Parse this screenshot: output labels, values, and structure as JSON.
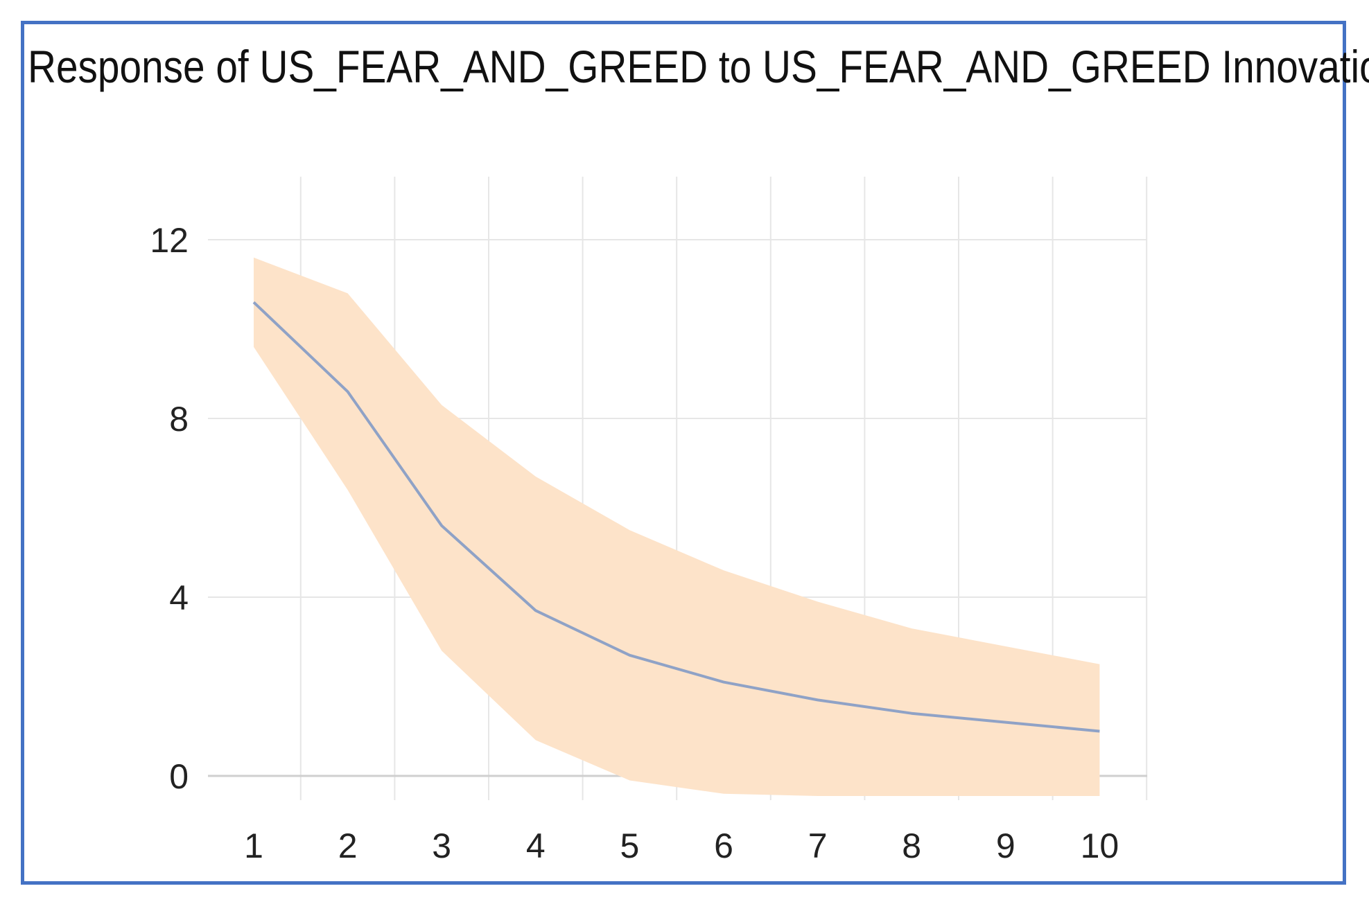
{
  "chart_data": {
    "type": "line",
    "title": "Response of US_FEAR_AND_GREED to US_FEAR_AND_GREED Innovation",
    "xlabel": "",
    "ylabel": "",
    "x": [
      1,
      2,
      3,
      4,
      5,
      6,
      7,
      8,
      9,
      10
    ],
    "x_tick_labels": [
      "1",
      "2",
      "3",
      "4",
      "5",
      "6",
      "7",
      "8",
      "9",
      "10"
    ],
    "y_ticks": [
      0,
      4,
      8,
      12
    ],
    "y_tick_labels": [
      "0",
      "4",
      "8",
      "12"
    ],
    "ylim": [
      -0.6,
      13.5
    ],
    "xlim": [
      0.5,
      10.5
    ],
    "grid": true,
    "series": [
      {
        "values": [
          10.6,
          8.6,
          5.6,
          3.7,
          2.7,
          2.1,
          1.7,
          1.4,
          1.2,
          1.0
        ]
      }
    ],
    "band": {
      "upper": [
        11.6,
        10.8,
        8.3,
        6.7,
        5.5,
        4.6,
        3.9,
        3.3,
        2.9,
        2.5
      ],
      "lower": [
        9.6,
        6.4,
        2.8,
        0.8,
        -0.1,
        -0.4,
        -0.45,
        -0.45,
        -0.45,
        -0.45
      ]
    },
    "colors": {
      "line": "#8fa2c6",
      "band": "#fde3c9",
      "grid": "#e6e6e6",
      "axis": "#cfcfcf",
      "frame": "#4472c4"
    }
  }
}
